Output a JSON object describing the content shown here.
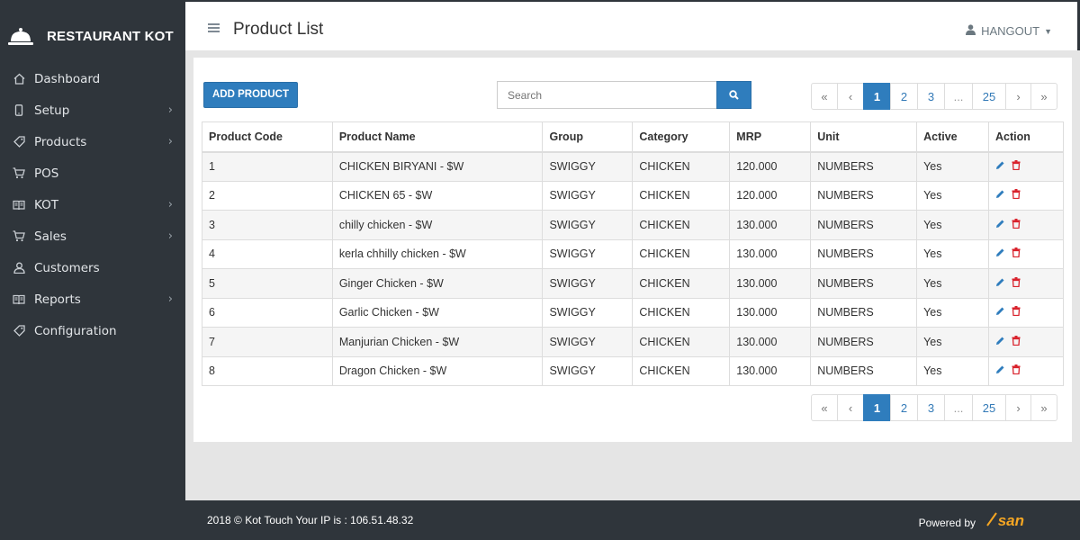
{
  "brand": {
    "title": "RESTAURANT KOT",
    "icon": "bell-icon"
  },
  "sidebar": {
    "items": [
      {
        "label": "Dashboard",
        "icon": "home-icon",
        "has_submenu": false
      },
      {
        "label": "Setup",
        "icon": "mobile-icon",
        "has_submenu": true
      },
      {
        "label": "Products",
        "icon": "tag-icon",
        "has_submenu": true
      },
      {
        "label": "POS",
        "icon": "cart-icon",
        "has_submenu": false
      },
      {
        "label": "KOT",
        "icon": "book-icon",
        "has_submenu": true
      },
      {
        "label": "Sales",
        "icon": "cart-icon",
        "has_submenu": true
      },
      {
        "label": "Customers",
        "icon": "user-icon",
        "has_submenu": false
      },
      {
        "label": "Reports",
        "icon": "book-icon",
        "has_submenu": true
      },
      {
        "label": "Configuration",
        "icon": "tag-icon",
        "has_submenu": false
      }
    ]
  },
  "header": {
    "title": "Product List",
    "user": "HANGOUT"
  },
  "toolbar": {
    "add_label": "ADD PRODUCT",
    "search_placeholder": "Search"
  },
  "pagination": {
    "first": "«",
    "prev": "‹",
    "pages": [
      "1",
      "2",
      "3"
    ],
    "ellipsis": "...",
    "last_page": "25",
    "next": "›",
    "last": "»",
    "active": "1"
  },
  "table": {
    "columns": [
      "Product Code",
      "Product Name",
      "Group",
      "Category",
      "MRP",
      "Unit",
      "Active",
      "Action"
    ],
    "rows": [
      [
        "1",
        "CHICKEN BIRYANI - $W",
        "SWIGGY",
        "CHICKEN",
        "120.000",
        "NUMBERS",
        "Yes"
      ],
      [
        "2",
        "CHICKEN 65 - $W",
        "SWIGGY",
        "CHICKEN",
        "120.000",
        "NUMBERS",
        "Yes"
      ],
      [
        "3",
        "chilly chicken - $W",
        "SWIGGY",
        "CHICKEN",
        "130.000",
        "NUMBERS",
        "Yes"
      ],
      [
        "4",
        "kerla chhilly chicken - $W",
        "SWIGGY",
        "CHICKEN",
        "130.000",
        "NUMBERS",
        "Yes"
      ],
      [
        "5",
        "Ginger Chicken - $W",
        "SWIGGY",
        "CHICKEN",
        "130.000",
        "NUMBERS",
        "Yes"
      ],
      [
        "6",
        "Garlic Chicken - $W",
        "SWIGGY",
        "CHICKEN",
        "130.000",
        "NUMBERS",
        "Yes"
      ],
      [
        "7",
        "Manjurian Chicken - $W",
        "SWIGGY",
        "CHICKEN",
        "130.000",
        "NUMBERS",
        "Yes"
      ],
      [
        "8",
        "Dragon Chicken - $W",
        "SWIGGY",
        "CHICKEN",
        "130.000",
        "NUMBERS",
        "Yes"
      ]
    ]
  },
  "footer": {
    "copyright": "2018 © Kot Touch Your IP is : 106.51.48.32",
    "powered_by": "Powered by",
    "logo_text": "san"
  },
  "colors": {
    "sidebar_bg": "#2f353b",
    "primary": "#2f7dbd",
    "edit": "#2f7dbd",
    "delete": "#d9232d",
    "logo": "#f5a623"
  }
}
